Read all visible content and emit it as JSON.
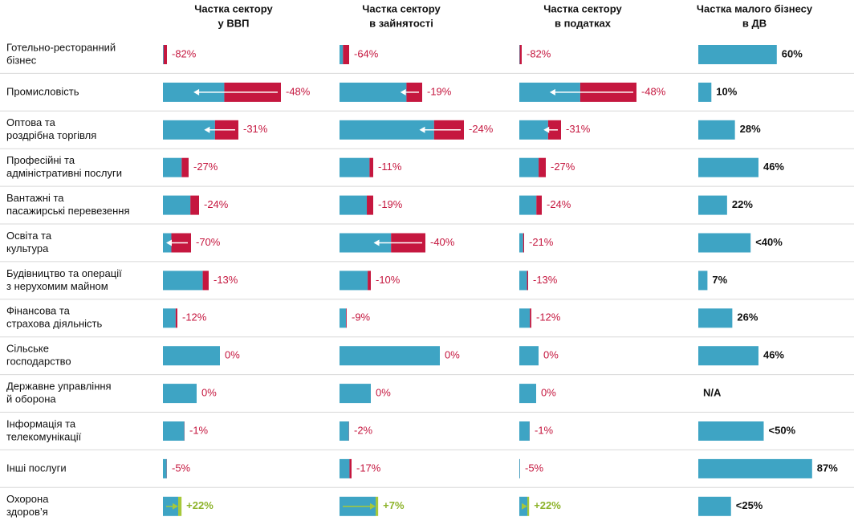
{
  "rows": [
    [
      "Готельно-ресторанний",
      "бізнес"
    ],
    [
      "Промисловість"
    ],
    [
      "Оптова та",
      "роздрібна торгівля"
    ],
    [
      "Професійні та",
      "адміністративні послуги"
    ],
    [
      "Вантажні та",
      "пасажирські перевезення"
    ],
    [
      "Освіта та",
      "культура"
    ],
    [
      "Будівництво та операції",
      "з нерухомим майном"
    ],
    [
      "Фінансова та",
      "страхова діяльність"
    ],
    [
      "Сільське",
      "господарство"
    ],
    [
      "Державне управління",
      "й оборона"
    ],
    [
      "Інформація та",
      "телекомунікації"
    ],
    [
      "Інші послуги"
    ],
    [
      "Охорона",
      "здоров’я"
    ]
  ],
  "colors": {
    "after": "#3ea4c4",
    "loss": "#c5173f",
    "gain": "#a6c83a"
  },
  "columns": [
    {
      "title": [
        "Частка сектору",
        "у ВВП"
      ],
      "shares": [
        0.5,
        14.7,
        9.4,
        3.2,
        4.5,
        3.5,
        5.7,
        1.8,
        7.1,
        4.2,
        2.7,
        0.5,
        1.9
      ],
      "changes": [
        -82,
        -48,
        -31,
        -27,
        -24,
        -70,
        -13,
        -12,
        0,
        0,
        -1,
        -5,
        22
      ],
      "change_labels": [
        "-82%",
        "-48%",
        "-31%",
        "-27%",
        "-24%",
        "-70%",
        "-13%",
        "-12%",
        "0%",
        "0%",
        "-1%",
        "-5%",
        "+22%"
      ]
    },
    {
      "title": [
        "Частка сектору",
        "в зайнятості"
      ],
      "shares": [
        1.2,
        10.3,
        15.5,
        4.2,
        4.2,
        10.7,
        3.9,
        0.9,
        12.5,
        3.9,
        1.2,
        1.5,
        4.5
      ],
      "changes": [
        -64,
        -19,
        -24,
        -11,
        -19,
        -40,
        -10,
        -9,
        0,
        0,
        -2,
        -17,
        7
      ],
      "change_labels": [
        "-64%",
        "-19%",
        "-24%",
        "-11%",
        "-19%",
        "-40%",
        "-10%",
        "-9%",
        "0%",
        "0%",
        "-2%",
        "-17%",
        "+7%"
      ]
    },
    {
      "title": [
        "Частка сектору",
        "в податках"
      ],
      "shares": [
        0.3,
        14.6,
        5.2,
        3.3,
        2.8,
        0.6,
        1.1,
        1.5,
        2.4,
        2.1,
        1.3,
        0.1,
        1.0
      ],
      "changes": [
        -82,
        -48,
        -31,
        -27,
        -24,
        -21,
        -13,
        -12,
        0,
        0,
        -1,
        -5,
        22
      ],
      "change_labels": [
        "-82%",
        "-48%",
        "-31%",
        "-27%",
        "-24%",
        "-21%",
        "-13%",
        "-12%",
        "0%",
        "0%",
        "-1%",
        "-5%",
        "+22%"
      ]
    }
  ],
  "small_business": {
    "title": [
      "Частка малого бізнесу",
      "в ДВ"
    ],
    "values": [
      60,
      10,
      28,
      46,
      22,
      40,
      7,
      26,
      46,
      null,
      50,
      87,
      25
    ],
    "value_labels": [
      "60%",
      "10%",
      "28%",
      "46%",
      "22%",
      "<40%",
      "7%",
      "26%",
      "46%",
      "N/A",
      "<50%",
      "87%",
      "<25%"
    ]
  }
}
